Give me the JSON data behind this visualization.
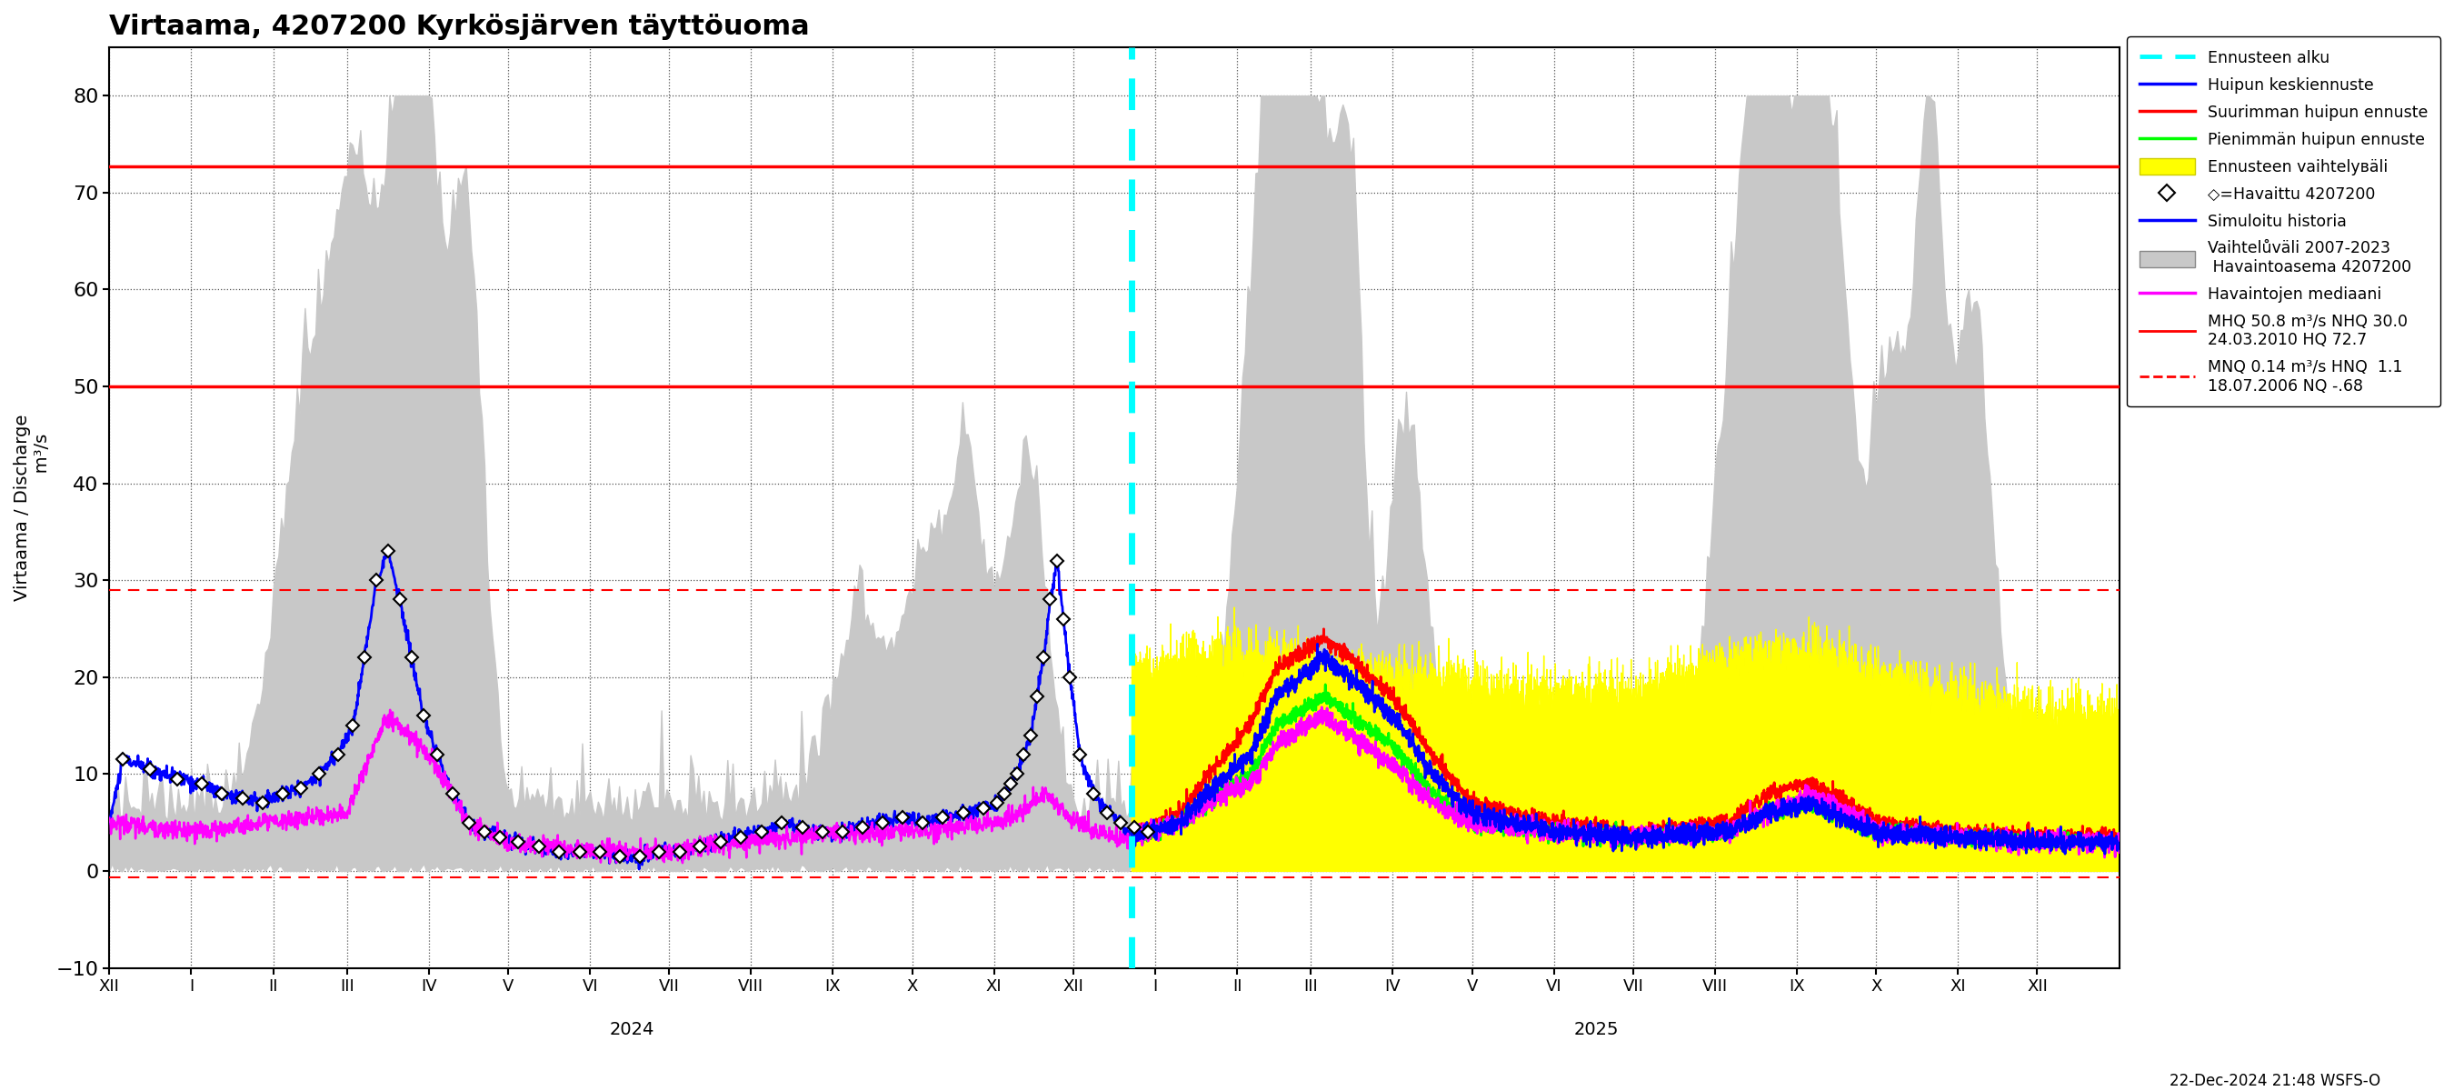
{
  "title": "Virtaama, 4207200 Kyrkösjärven täyttöuoma",
  "footnote": "22-Dec-2024 21:48 WSFS-O",
  "ylim": [
    -10,
    85
  ],
  "yticks": [
    -10,
    0,
    10,
    20,
    30,
    40,
    50,
    60,
    70,
    80
  ],
  "hline_HQ": 72.7,
  "hline_MHQ": 50.0,
  "hline_NHQ": 29.0,
  "hline_NQ": -0.68,
  "colors": {
    "cyan_dashed": "#00FFFF",
    "blue_line": "#0000FF",
    "red_line": "#FF0000",
    "green_line": "#00FF00",
    "yellow_fill": "#FFFF00",
    "magenta_line": "#FF00FF",
    "gray_fill": "#C8C8C8",
    "background": "#FFFFFF"
  },
  "month_labels": [
    "XII",
    "I",
    "II",
    "III",
    "IV",
    "V",
    "VI",
    "VII",
    "VIII",
    "IX",
    "X",
    "XI",
    "XII",
    "I",
    "II",
    "III",
    "IV",
    "V",
    "VI",
    "VII",
    "VIII",
    "IX",
    "X",
    "XI",
    "XII"
  ],
  "days_per_month": [
    31,
    31,
    28,
    31,
    30,
    31,
    30,
    31,
    31,
    30,
    31,
    30,
    31,
    31,
    28,
    31,
    30,
    31,
    30,
    31,
    31,
    30,
    31,
    30,
    31
  ],
  "forecast_month_idx": 12,
  "obs_data": {
    "0": [
      11.5,
      10.5,
      9.5
    ],
    "1": [
      9.0,
      8.0,
      7.5,
      7.0
    ],
    "2": [
      8.0,
      8.5,
      10.0,
      12.0
    ],
    "3": [
      15.0,
      22.0,
      30.0,
      33.0,
      28.0,
      22.0,
      16.0
    ],
    "4": [
      12.0,
      8.0,
      5.0,
      4.0,
      3.5
    ],
    "5": [
      3.0,
      2.5,
      2.0,
      2.0
    ],
    "6": [
      2.0,
      1.5,
      1.5,
      2.0
    ],
    "7": [
      2.0,
      2.5,
      3.0,
      3.5
    ],
    "8": [
      4.0,
      5.0,
      4.5,
      4.0
    ],
    "9": [
      4.0,
      4.5,
      5.0,
      5.5
    ],
    "10": [
      5.0,
      5.5,
      6.0,
      6.5
    ],
    "11": [
      7.0,
      8.0,
      9.0,
      10.0,
      12.0,
      14.0,
      18.0,
      22.0,
      28.0,
      32.0,
      26.0,
      20.0
    ],
    "12": [
      12.0,
      8.0,
      6.0,
      5.0,
      4.5,
      4.0
    ]
  }
}
